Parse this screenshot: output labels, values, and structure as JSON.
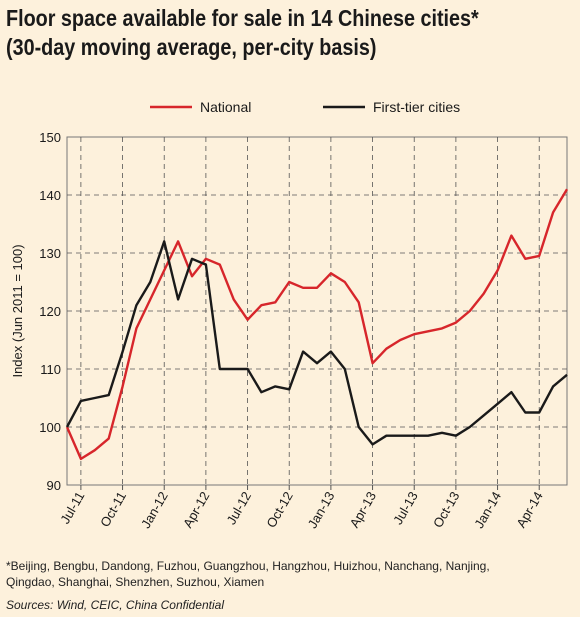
{
  "title_line1": "Floor space available for sale in 14 Chinese cities*",
  "title_line2": "(30-day moving average, per-city basis)",
  "footnote_line1": "*Beijing, Bengbu, Dandong, Fuzhou, Guangzhou, Hangzhou, Huizhou, Nanchang, Nanjing,",
  "footnote_line2": "Qingdao, Shanghai, Shenzhen, Suzhou, Xiamen",
  "sources": "Sources: Wind, CEIC, China Confidential",
  "colors": {
    "national": "#d7262b",
    "first_tier": "#1a1a1a",
    "background": "#fdf1dc"
  },
  "chart_data": {
    "type": "line",
    "title": "Floor space available for sale in 14 Chinese cities*",
    "subtitle": "(30-day moving average, per-city basis)",
    "ylabel": "Index (Jun 2011 = 100)",
    "xlabel": "",
    "ylim": [
      90,
      150
    ],
    "yticks": [
      90,
      100,
      110,
      120,
      130,
      140,
      150
    ],
    "xlim": [
      "2011-06",
      "2014-06"
    ],
    "xticks": [
      "Jul-11",
      "Oct-11",
      "Jan-12",
      "Apr-12",
      "Jul-12",
      "Oct-12",
      "Jan-13",
      "Apr-13",
      "Jul-13",
      "Oct-13",
      "Jan-14",
      "Apr-14"
    ],
    "grid": true,
    "legend_position": "top",
    "series": [
      {
        "name": "National",
        "x": [
          "2011-06",
          "2011-07",
          "2011-08",
          "2011-09",
          "2011-10",
          "2011-11",
          "2011-12",
          "2012-01",
          "2012-02",
          "2012-03",
          "2012-04",
          "2012-05",
          "2012-06",
          "2012-07",
          "2012-08",
          "2012-09",
          "2012-10",
          "2012-11",
          "2012-12",
          "2013-01",
          "2013-02",
          "2013-03",
          "2013-04",
          "2013-05",
          "2013-06",
          "2013-07",
          "2013-08",
          "2013-09",
          "2013-10",
          "2013-11",
          "2013-12",
          "2014-01",
          "2014-02",
          "2014-03",
          "2014-04",
          "2014-05",
          "2014-06"
        ],
        "values": [
          100,
          94.5,
          96,
          98,
          107,
          117,
          122,
          127,
          132,
          126,
          129,
          128,
          122,
          118.5,
          121,
          121.5,
          125,
          124,
          124,
          126.5,
          125,
          121.5,
          111,
          113.5,
          115,
          116,
          116.5,
          117,
          118,
          120,
          123,
          127,
          133,
          129,
          129.5,
          137,
          141
        ]
      },
      {
        "name": "First-tier cities",
        "x": [
          "2011-06",
          "2011-07",
          "2011-08",
          "2011-09",
          "2011-10",
          "2011-11",
          "2011-12",
          "2012-01",
          "2012-02",
          "2012-03",
          "2012-04",
          "2012-05",
          "2012-06",
          "2012-07",
          "2012-08",
          "2012-09",
          "2012-10",
          "2012-11",
          "2012-12",
          "2013-01",
          "2013-02",
          "2013-03",
          "2013-04",
          "2013-05",
          "2013-06",
          "2013-07",
          "2013-08",
          "2013-09",
          "2013-10",
          "2013-11",
          "2013-12",
          "2014-01",
          "2014-02",
          "2014-03",
          "2014-04",
          "2014-05",
          "2014-06"
        ],
        "values": [
          100,
          104.5,
          105,
          105.5,
          113,
          121,
          125,
          132,
          122,
          129,
          128,
          110,
          110,
          110,
          106,
          107,
          106.5,
          113,
          111,
          113,
          110,
          100,
          97,
          98.5,
          98.5,
          98.5,
          98.5,
          99,
          98.5,
          100,
          102,
          104,
          106,
          102.5,
          102.5,
          107,
          109
        ]
      }
    ]
  }
}
